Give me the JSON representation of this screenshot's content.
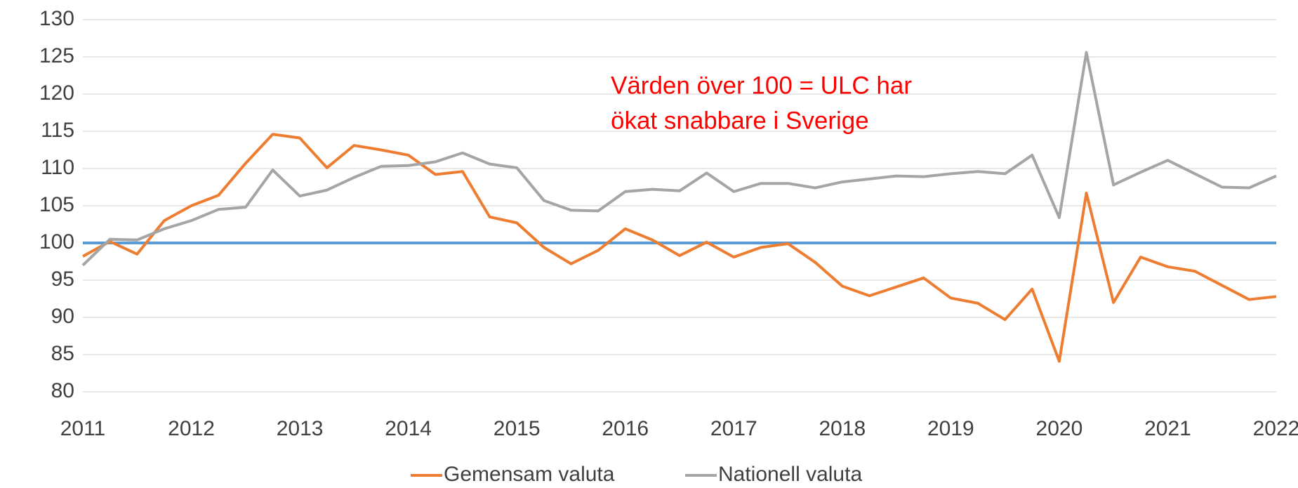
{
  "chart_data": {
    "type": "line",
    "x": [
      2011,
      2011.25,
      2011.5,
      2011.75,
      2012,
      2012.25,
      2012.5,
      2012.75,
      2013,
      2013.25,
      2013.5,
      2013.75,
      2014,
      2014.25,
      2014.5,
      2014.75,
      2015,
      2015.25,
      2015.5,
      2015.75,
      2016,
      2016.25,
      2016.5,
      2016.75,
      2017,
      2017.25,
      2017.5,
      2017.75,
      2018,
      2018.25,
      2018.5,
      2018.75,
      2019,
      2019.25,
      2019.5,
      2019.75,
      2020,
      2020.25,
      2020.5,
      2020.75,
      2021,
      2021.25,
      2021.5,
      2021.75,
      2022
    ],
    "series": [
      {
        "name": "Gemensam valuta",
        "color": "#ed7d31",
        "values": [
          98.2,
          100.2,
          98.5,
          103,
          105,
          106.4,
          110.7,
          114.6,
          114.1,
          110.1,
          113.1,
          112.5,
          111.8,
          109.2,
          109.6,
          103.5,
          102.7,
          99.4,
          97.2,
          99,
          101.9,
          100.4,
          98.3,
          100.1,
          98.1,
          99.4,
          99.9,
          97.4,
          94.2,
          92.9,
          94.1,
          95.3,
          92.6,
          91.9,
          89.7,
          93.8,
          84.1,
          106.7,
          92,
          98.1,
          96.8,
          96.2,
          94.3,
          92.4,
          92.8
        ]
      },
      {
        "name": "Nationell valuta",
        "color": "#a5a5a5",
        "values": [
          97,
          100.5,
          100.4,
          101.9,
          103,
          104.5,
          104.8,
          109.8,
          106.3,
          107.1,
          108.8,
          110.3,
          110.4,
          110.9,
          112.1,
          110.6,
          110.1,
          105.7,
          104.4,
          104.3,
          106.9,
          107.2,
          107,
          109.4,
          106.9,
          108,
          108,
          107.4,
          108.2,
          108.6,
          109,
          108.9,
          109.3,
          109.6,
          109.3,
          111.8,
          103.4,
          125.6,
          107.8,
          109.5,
          111.1,
          109.3,
          107.5,
          107.4,
          109
        ]
      }
    ],
    "reference_line": {
      "value": 100,
      "color": "#5b9bd5"
    },
    "annotation": [
      "Värden över 100 = ULC har",
      "ökat snabbare i Sverige"
    ],
    "annotation_color": "#ff0000",
    "xlim": [
      2011,
      2022
    ],
    "xticks": [
      2011,
      2012,
      2013,
      2014,
      2015,
      2016,
      2017,
      2018,
      2019,
      2020,
      2021,
      2022
    ],
    "ylim": [
      80,
      130
    ],
    "yticks": [
      80,
      85,
      90,
      95,
      100,
      105,
      110,
      115,
      120,
      125,
      130
    ],
    "grid": true,
    "legend": "bottom"
  }
}
